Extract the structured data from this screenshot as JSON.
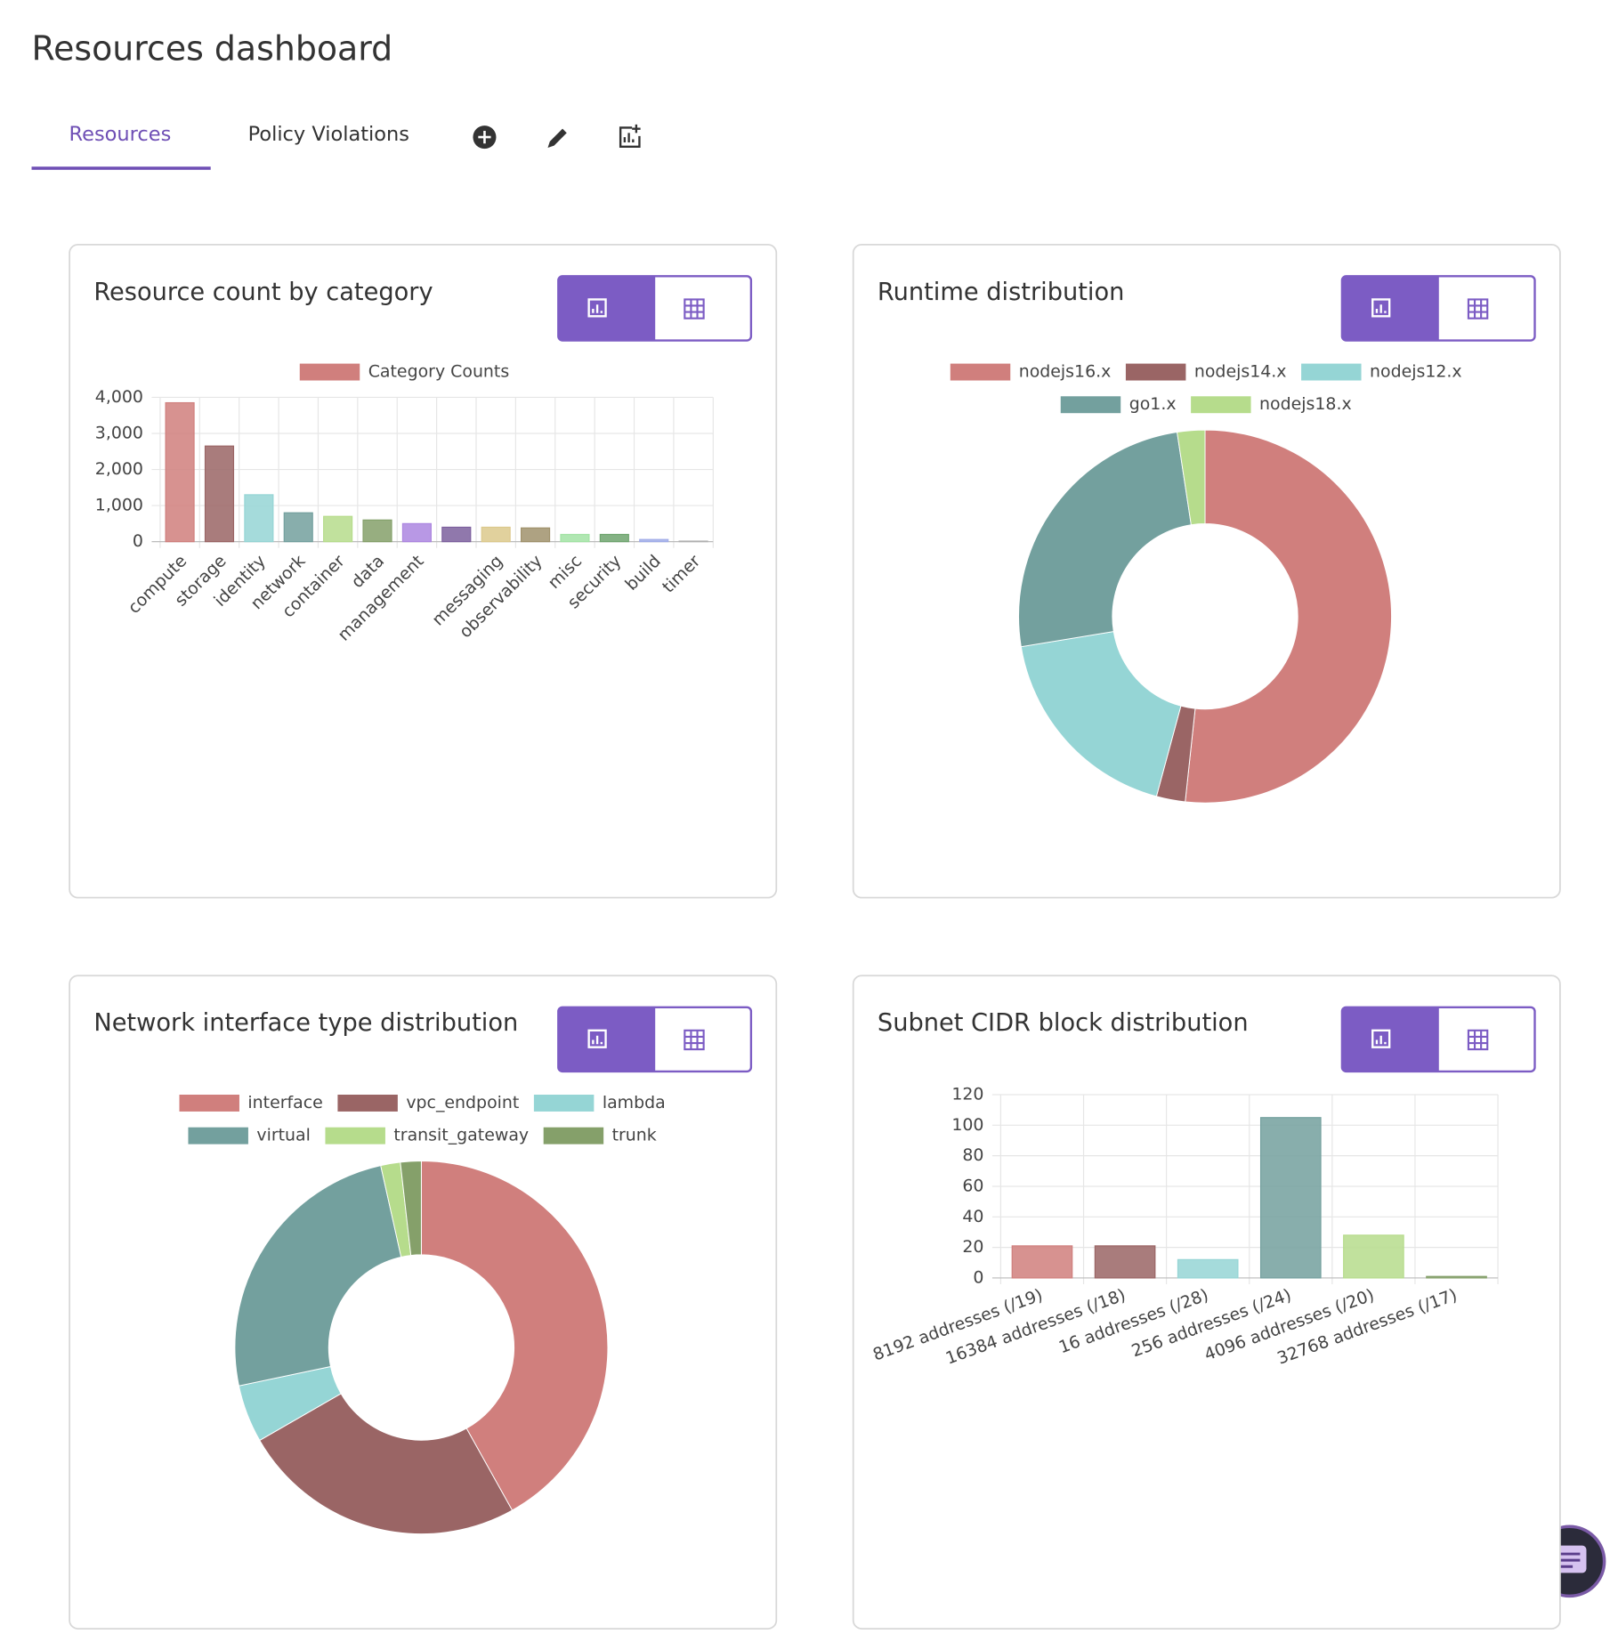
{
  "header": {
    "title": "Resources dashboard"
  },
  "tabs": [
    "Resources",
    "Policy Violations"
  ],
  "chart_data": [
    {
      "type": "bar",
      "title": "Resource count by category",
      "categories": [
        "compute",
        "storage",
        "identity",
        "network",
        "container",
        "data",
        "management",
        null,
        "messaging",
        "observability",
        "misc",
        "security",
        "build",
        "timer"
      ],
      "series": [
        {
          "name": "Category Counts",
          "colors": [
            "#d07f7d",
            "#9a6565",
            "#95d5d5",
            "#73a09e",
            "#b6dc8c",
            "#85a06a",
            "#ac86e0",
            "#7d609e",
            "#dcc98c",
            "#a0926c",
            "#a2e3a4",
            "#6ea46e",
            "#a0ace8",
            "#b0b0b0"
          ],
          "values": [
            3850,
            2650,
            1300,
            800,
            700,
            600,
            500,
            400,
            400,
            380,
            200,
            200,
            60,
            15
          ]
        }
      ],
      "ylim": [
        0,
        4000
      ],
      "yticks": [
        0,
        {
          "value": 1000,
          "label": "1,000"
        },
        {
          "value": 2000,
          "label": "2,000"
        },
        {
          "value": 3000,
          "label": "3,000"
        },
        {
          "value": 4000,
          "label": "4,000"
        }
      ],
      "grid": true
    },
    {
      "type": "doughnut",
      "title": "Runtime distribution",
      "categories": [
        "nodejs16.x",
        "nodejs14.x",
        "nodejs12.x",
        "go1.x",
        "nodejs18.x"
      ],
      "values": [
        51.7,
        2.5,
        18.2,
        25.2,
        2.4
      ],
      "colors": [
        "#d07f7d",
        "#9a6565",
        "#95d5d5",
        "#73a09e",
        "#b6dc8c"
      ]
    },
    {
      "type": "doughnut",
      "title": "Network interface type distribution",
      "categories": [
        "interface",
        "vpc_endpoint",
        "lambda",
        "virtual",
        "transit_gateway",
        "trunk"
      ],
      "values": [
        41.9,
        24.8,
        5.0,
        24.8,
        1.7,
        1.8
      ],
      "colors": [
        "#d07f7d",
        "#9a6565",
        "#95d5d5",
        "#73a09e",
        "#b6dc8c",
        "#85a06a"
      ]
    },
    {
      "type": "bar",
      "title": "Subnet CIDR block distribution",
      "categories": [
        "8192 addresses (/19)",
        "16384 addresses (/18)",
        "16 addresses (/28)",
        "256 addresses (/24)",
        "4096 addresses (/20)",
        "32768 addresses (/17)"
      ],
      "values": [
        21,
        21,
        12,
        105,
        28,
        1
      ],
      "colors": [
        "#d07f7d",
        "#9a6565",
        "#95d5d5",
        "#73a09e",
        "#b6dc8c",
        "#85a06a"
      ],
      "ylim": [
        0,
        120
      ],
      "yticks": [
        0,
        20,
        40,
        60,
        80,
        100,
        120
      ],
      "grid": true
    }
  ]
}
